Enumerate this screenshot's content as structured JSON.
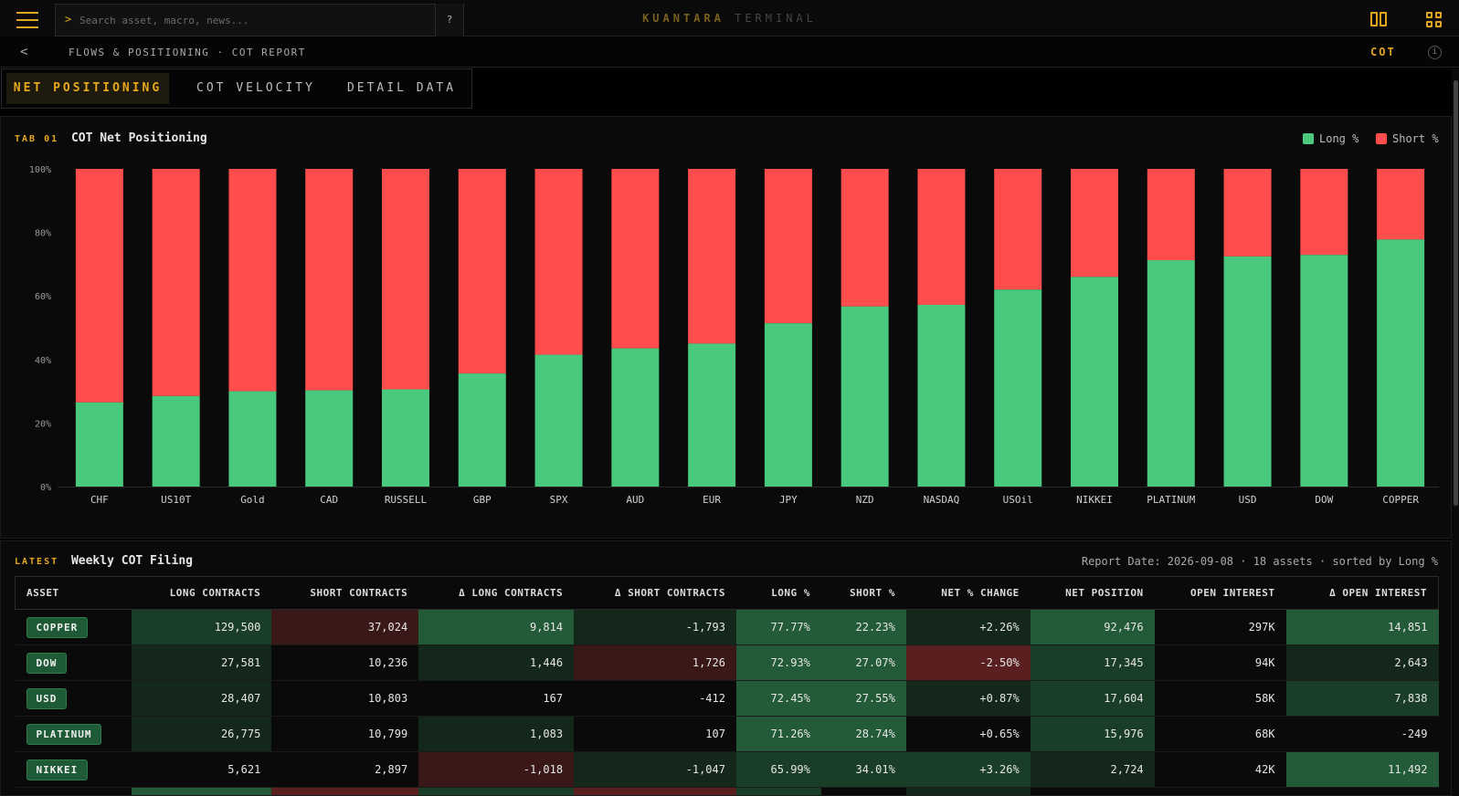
{
  "topbar": {
    "search_prompt": ">",
    "search_placeholder": "Search asset, macro, news...",
    "help_label": "?",
    "brand_primary": "KUANTARA",
    "brand_secondary": "TERMINAL",
    "icons": [
      "menu-icon",
      "split-view-icon",
      "grid-view-icon"
    ],
    "accent_color": "#e0a420"
  },
  "breadcrumb": {
    "back_glyph": "<",
    "path": "FLOWS & POSITIONING · COT REPORT",
    "section_tag": "COT",
    "info_glyph": "i"
  },
  "tabs": [
    {
      "label": "NET POSITIONING",
      "active": true
    },
    {
      "label": "COT VELOCITY",
      "active": false
    },
    {
      "label": "DETAIL DATA",
      "active": false
    }
  ],
  "chart_panel": {
    "kicker": "TAB 01",
    "title": "COT Net Positioning",
    "legend": [
      {
        "label": "Long %",
        "color": "#48c97d"
      },
      {
        "label": "Short %",
        "color": "#ff4c4c"
      }
    ]
  },
  "chart_data": {
    "type": "bar",
    "stacked": true,
    "categories": [
      "CHF",
      "US10T",
      "Gold",
      "CAD",
      "RUSSELL",
      "GBP",
      "SPX",
      "AUD",
      "EUR",
      "JPY",
      "NZD",
      "NASDAQ",
      "USOil",
      "NIKKEI",
      "PLATINUM",
      "USD",
      "DOW",
      "COPPER"
    ],
    "series": [
      {
        "name": "Long %",
        "values": [
          26.5,
          28.5,
          30,
          30.3,
          30.6,
          35.6,
          41.5,
          43.5,
          45,
          51.4,
          56.7,
          57.2,
          62,
          66,
          71.26,
          72.45,
          72.93,
          77.77
        ]
      },
      {
        "name": "Short %",
        "values": [
          73.5,
          71.5,
          70,
          69.7,
          69.4,
          64.4,
          58.5,
          56.5,
          55,
          48.6,
          43.3,
          42.8,
          38,
          34,
          28.74,
          27.55,
          27.07,
          22.23
        ]
      }
    ],
    "yticks": [
      "0%",
      "20%",
      "40%",
      "60%",
      "80%",
      "100%"
    ],
    "ylim": [
      0,
      100
    ],
    "grid": false,
    "legend_position": "top-right"
  },
  "table_panel": {
    "kicker": "LATEST",
    "title": "Weekly COT Filing",
    "meta": "Report Date: 2026-09-08 · 18 assets · sorted by Long %",
    "columns": [
      "ASSET",
      "LONG CONTRACTS",
      "SHORT CONTRACTS",
      "Δ LONG CONTRACTS",
      "Δ SHORT CONTRACTS",
      "LONG %",
      "SHORT %",
      "NET % CHANGE",
      "NET POSITION",
      "OPEN INTEREST",
      "Δ OPEN INTEREST"
    ],
    "rows": [
      {
        "cells": [
          "COPPER",
          "129,500",
          "37,024",
          "9,814",
          "-1,793",
          "77.77%",
          "22.23%",
          "+2.26%",
          "92,476",
          "297K",
          "14,851"
        ],
        "tones": [
          "",
          "g2",
          "r2",
          "g3",
          "g1",
          "g3",
          "g3",
          "g1",
          "g3",
          "n",
          "g3"
        ]
      },
      {
        "cells": [
          "DOW",
          "27,581",
          "10,236",
          "1,446",
          "1,726",
          "72.93%",
          "27.07%",
          "-2.50%",
          "17,345",
          "94K",
          "2,643"
        ],
        "tones": [
          "",
          "g1",
          "n",
          "g1",
          "r2",
          "g3",
          "g3",
          "r3",
          "g2",
          "n",
          "g1"
        ]
      },
      {
        "cells": [
          "USD",
          "28,407",
          "10,803",
          "167",
          "-412",
          "72.45%",
          "27.55%",
          "+0.87%",
          "17,604",
          "58K",
          "7,838"
        ],
        "tones": [
          "",
          "g1",
          "n",
          "n",
          "n",
          "g3",
          "g3",
          "g1",
          "g2",
          "n",
          "g2"
        ]
      },
      {
        "cells": [
          "PLATINUM",
          "26,775",
          "10,799",
          "1,083",
          "107",
          "71.26%",
          "28.74%",
          "+0.65%",
          "15,976",
          "68K",
          "-249"
        ],
        "tones": [
          "",
          "g1",
          "n",
          "g1",
          "n",
          "g3",
          "g3",
          "n",
          "g2",
          "n",
          "n"
        ]
      },
      {
        "cells": [
          "NIKKEI",
          "5,621",
          "2,897",
          "-1,018",
          "-1,047",
          "65.99%",
          "34.01%",
          "+3.26%",
          "2,724",
          "42K",
          "11,492"
        ],
        "tones": [
          "",
          "n",
          "n",
          "r2",
          "g1",
          "g2",
          "g2",
          "g2",
          "g1",
          "n",
          "g3"
        ]
      },
      {
        "cells": [
          "",
          "",
          "",
          "",
          "",
          "",
          "",
          "",
          "",
          "",
          ""
        ],
        "tones": [
          "",
          "g3",
          "r3",
          "g2",
          "r3",
          "g2",
          "n",
          "g1",
          "n",
          "n",
          "n"
        ]
      }
    ],
    "tone_colors": {
      "g1": "#13271b",
      "g2": "#1a3d27",
      "g3": "#235a37",
      "r1": "#2a1414",
      "r2": "#3a1818",
      "r3": "#5a2020",
      "n": "#0a0a0a"
    }
  }
}
